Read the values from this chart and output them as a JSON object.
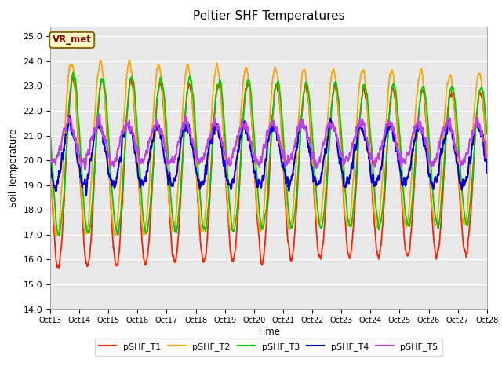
{
  "title": "Peltier SHF Temperatures",
  "xlabel": "Time",
  "ylabel": "Soil Temperature",
  "ylim": [
    14.0,
    25.4
  ],
  "yticks": [
    14.0,
    15.0,
    16.0,
    17.0,
    18.0,
    19.0,
    20.0,
    21.0,
    22.0,
    23.0,
    24.0,
    25.0
  ],
  "x_tick_labels": [
    "Oct 13",
    "Oct 14",
    "Oct 15",
    "Oct 16",
    "Oct 17",
    "Oct 18",
    "Oct 19",
    "Oct 20",
    "Oct 21",
    "Oct 22",
    "Oct 23",
    "Oct 24",
    "Oct 25",
    "Oct 26",
    "Oct 27",
    "Oct 28"
  ],
  "annotation_text": "VR_met",
  "annotation_text_color": "#8B0000",
  "annotation_box_facecolor": "#FFFFC8",
  "annotation_box_edgecolor": "#8B6914",
  "bg_color": "#E8E8E8",
  "series": [
    {
      "label": "pSHF_T1",
      "color": "#FF2200"
    },
    {
      "label": "pSHF_T2",
      "color": "#FFA500"
    },
    {
      "label": "pSHF_T3",
      "color": "#00CC00"
    },
    {
      "label": "pSHF_T4",
      "color": "#0000DD"
    },
    {
      "label": "pSHF_T5",
      "color": "#BB44DD"
    }
  ],
  "n_days": 15,
  "points_per_day": 144,
  "T1_mid": 19.5,
  "T1_amp": 3.8,
  "T2_mid": 20.5,
  "T2_amp": 3.5,
  "T3_mid": 20.2,
  "T3_amp": 3.2,
  "T4_mid": 20.2,
  "T4_amp": 1.2,
  "T5_mid": 20.7,
  "T5_amp": 0.8
}
